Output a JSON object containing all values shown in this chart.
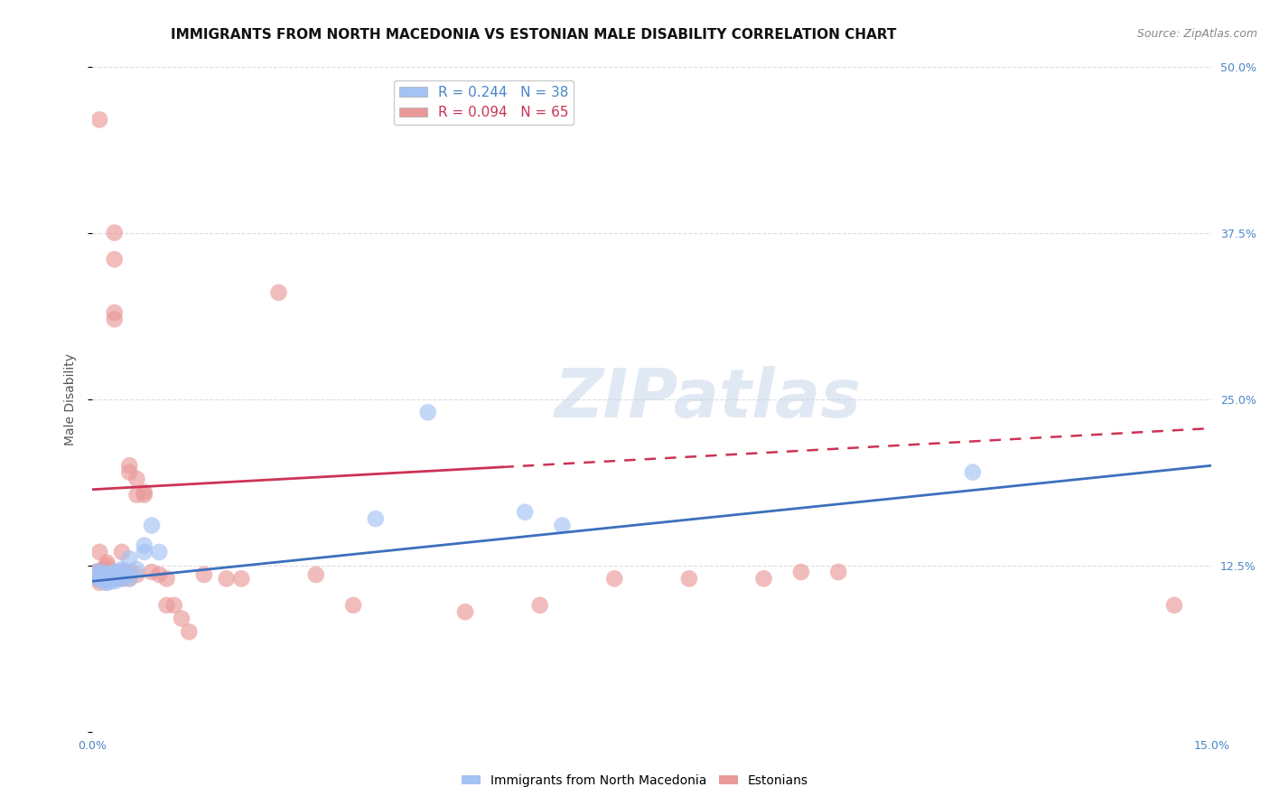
{
  "title": "IMMIGRANTS FROM NORTH MACEDONIA VS ESTONIAN MALE DISABILITY CORRELATION CHART",
  "source": "Source: ZipAtlas.com",
  "ylabel_label": "Male Disability",
  "xlim": [
    0.0,
    0.15
  ],
  "ylim": [
    0.0,
    0.5
  ],
  "xticks": [
    0.0,
    0.03,
    0.06,
    0.09,
    0.12,
    0.15
  ],
  "xtick_labels": [
    "0.0%",
    "",
    "",
    "",
    "",
    "15.0%"
  ],
  "yticks_right": [
    0.125,
    0.25,
    0.375,
    0.5
  ],
  "ytick_labels_right": [
    "12.5%",
    "25.0%",
    "37.5%",
    "50.0%"
  ],
  "blue_R": 0.244,
  "blue_N": 38,
  "pink_R": 0.094,
  "pink_N": 65,
  "blue_color": "#a4c2f4",
  "pink_color": "#ea9999",
  "blue_line_color": "#3d6fbd",
  "pink_line_color": "#cc3355",
  "blue_x": [
    0.0005,
    0.0007,
    0.0009,
    0.001,
    0.0012,
    0.0013,
    0.0015,
    0.0016,
    0.0017,
    0.002,
    0.002,
    0.002,
    0.002,
    0.0022,
    0.0025,
    0.003,
    0.003,
    0.003,
    0.003,
    0.0033,
    0.0035,
    0.004,
    0.004,
    0.004,
    0.004,
    0.005,
    0.005,
    0.005,
    0.006,
    0.007,
    0.007,
    0.008,
    0.009,
    0.038,
    0.045,
    0.058,
    0.063,
    0.118
  ],
  "blue_y": [
    0.12,
    0.115,
    0.118,
    0.117,
    0.115,
    0.12,
    0.113,
    0.118,
    0.115,
    0.112,
    0.115,
    0.118,
    0.112,
    0.118,
    0.115,
    0.115,
    0.118,
    0.12,
    0.113,
    0.12,
    0.115,
    0.115,
    0.118,
    0.12,
    0.122,
    0.13,
    0.115,
    0.118,
    0.122,
    0.135,
    0.14,
    0.155,
    0.135,
    0.16,
    0.24,
    0.165,
    0.155,
    0.195
  ],
  "pink_x": [
    0.0004,
    0.0006,
    0.0008,
    0.001,
    0.001,
    0.001,
    0.001,
    0.001,
    0.001,
    0.0012,
    0.0013,
    0.0014,
    0.0015,
    0.0016,
    0.0018,
    0.002,
    0.002,
    0.002,
    0.002,
    0.002,
    0.002,
    0.0022,
    0.0025,
    0.003,
    0.003,
    0.003,
    0.003,
    0.003,
    0.003,
    0.0033,
    0.004,
    0.004,
    0.004,
    0.004,
    0.0042,
    0.005,
    0.005,
    0.005,
    0.005,
    0.006,
    0.006,
    0.006,
    0.007,
    0.007,
    0.008,
    0.009,
    0.01,
    0.01,
    0.011,
    0.012,
    0.013,
    0.015,
    0.018,
    0.02,
    0.025,
    0.03,
    0.035,
    0.05,
    0.06,
    0.07,
    0.08,
    0.09,
    0.095,
    0.1,
    0.145
  ],
  "pink_y": [
    0.12,
    0.118,
    0.115,
    0.46,
    0.135,
    0.12,
    0.118,
    0.115,
    0.112,
    0.118,
    0.12,
    0.122,
    0.118,
    0.115,
    0.12,
    0.118,
    0.115,
    0.12,
    0.122,
    0.125,
    0.127,
    0.118,
    0.115,
    0.355,
    0.375,
    0.31,
    0.315,
    0.12,
    0.115,
    0.118,
    0.12,
    0.115,
    0.118,
    0.135,
    0.12,
    0.2,
    0.115,
    0.195,
    0.12,
    0.178,
    0.19,
    0.118,
    0.178,
    0.18,
    0.12,
    0.118,
    0.115,
    0.095,
    0.095,
    0.085,
    0.075,
    0.118,
    0.115,
    0.115,
    0.33,
    0.118,
    0.095,
    0.09,
    0.095,
    0.115,
    0.115,
    0.115,
    0.12,
    0.12,
    0.095
  ],
  "watermark_text": "ZIPatlas",
  "background_color": "#ffffff",
  "grid_color": "#dddddd",
  "title_fontsize": 11,
  "axis_label_fontsize": 10,
  "tick_fontsize": 9,
  "legend_fontsize": 11
}
